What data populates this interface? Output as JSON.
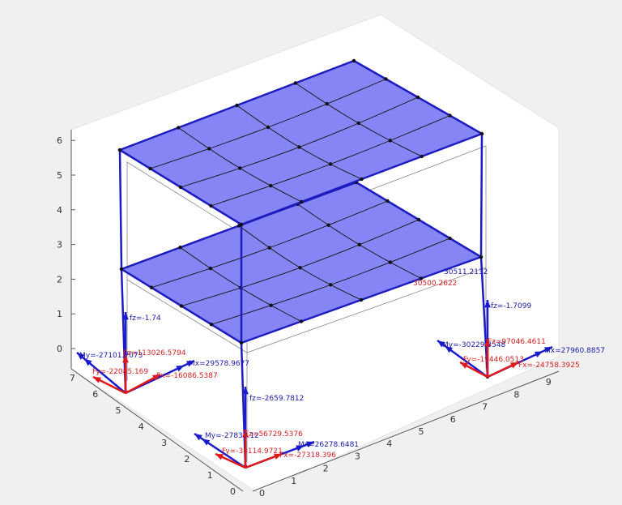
{
  "axes": {
    "z_ticks": [
      "0",
      "1",
      "2",
      "3",
      "4",
      "5",
      "6"
    ],
    "y_ticks": [
      "0",
      "1",
      "2",
      "3",
      "4",
      "5",
      "6",
      "7"
    ],
    "x_ticks": [
      "0",
      "1",
      "2",
      "3",
      "4",
      "5",
      "6",
      "7",
      "8",
      "9"
    ]
  },
  "reactions": [
    {
      "fz": "fz=-1.74",
      "my": "My=-27101.7073",
      "Fz": "Fz=113026.5794",
      "mx": "Mx=29578.9677",
      "Fy": "Fy=-22085.169",
      "Fx": "Fx=-16086.5387"
    },
    {
      "fz": "fz=-2659.7812",
      "my": "My=-27837.12",
      "Fz": "Fz=56729.5376",
      "mx": "Mx=26278.6481",
      "Fy": "Fy=-34114.9721",
      "Fx": "Fx=-27318.396"
    },
    {
      "fz": "fz=-1.7099",
      "my": "My=-30229.3548",
      "Fz": "Fz=97046.4611",
      "mx": "Mx=27960.8857",
      "Fy": "Fy=-19446.0513",
      "Fx": "Fx=-24758.3925"
    },
    {
      "mx": "30511.2132",
      "Fx": "30500.2622"
    }
  ]
}
